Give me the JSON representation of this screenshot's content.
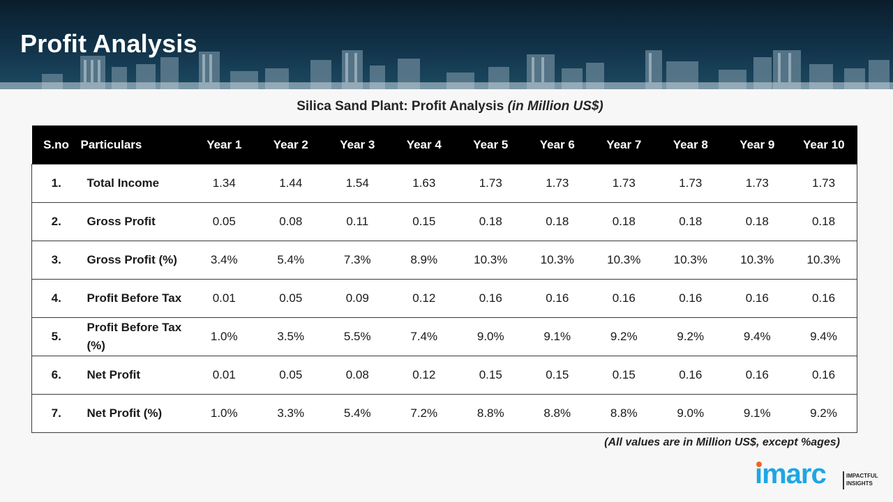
{
  "header": {
    "title": "Profit Analysis"
  },
  "table": {
    "title_main": "Silica Sand Plant: Profit Analysis ",
    "title_italic": "(in Million US$)",
    "columns": [
      "S.no",
      "Particulars",
      "Year 1",
      "Year 2",
      "Year 3",
      "Year 4",
      "Year 5",
      "Year 6",
      "Year 7",
      "Year 8",
      "Year 9",
      "Year 10"
    ],
    "rows": [
      {
        "sno": "1.",
        "particular": "Total Income",
        "values": [
          "1.34",
          "1.44",
          "1.54",
          "1.63",
          "1.73",
          "1.73",
          "1.73",
          "1.73",
          "1.73",
          "1.73"
        ]
      },
      {
        "sno": "2.",
        "particular": "Gross Profit",
        "values": [
          "0.05",
          "0.08",
          "0.11",
          "0.15",
          "0.18",
          "0.18",
          "0.18",
          "0.18",
          "0.18",
          "0.18"
        ]
      },
      {
        "sno": "3.",
        "particular": "Gross Profit (%)",
        "values": [
          "3.4%",
          "5.4%",
          "7.3%",
          "8.9%",
          "10.3%",
          "10.3%",
          "10.3%",
          "10.3%",
          "10.3%",
          "10.3%"
        ]
      },
      {
        "sno": "4.",
        "particular": "Profit Before Tax",
        "values": [
          "0.01",
          "0.05",
          "0.09",
          "0.12",
          "0.16",
          "0.16",
          "0.16",
          "0.16",
          "0.16",
          "0.16"
        ]
      },
      {
        "sno": "5.",
        "particular": "Profit Before Tax (%)",
        "values": [
          "1.0%",
          "3.5%",
          "5.5%",
          "7.4%",
          "9.0%",
          "9.1%",
          "9.2%",
          "9.2%",
          "9.4%",
          "9.4%"
        ]
      },
      {
        "sno": "6.",
        "particular": "Net Profit",
        "values": [
          "0.01",
          "0.05",
          "0.08",
          "0.12",
          "0.15",
          "0.15",
          "0.15",
          "0.16",
          "0.16",
          "0.16"
        ]
      },
      {
        "sno": "7.",
        "particular": "Net Profit (%)",
        "values": [
          "1.0%",
          "3.3%",
          "5.4%",
          "7.2%",
          "8.8%",
          "8.8%",
          "8.8%",
          "9.0%",
          "9.1%",
          "9.2%"
        ]
      }
    ]
  },
  "footnote": "(All values are in Million US$, except %ages)",
  "logo": {
    "wordmark": "imarc",
    "tagline_1": "IMPACTFUL",
    "tagline_2": "INSIGHTS",
    "brand_color": "#1ea6e4",
    "dot_color": "#f26522"
  }
}
